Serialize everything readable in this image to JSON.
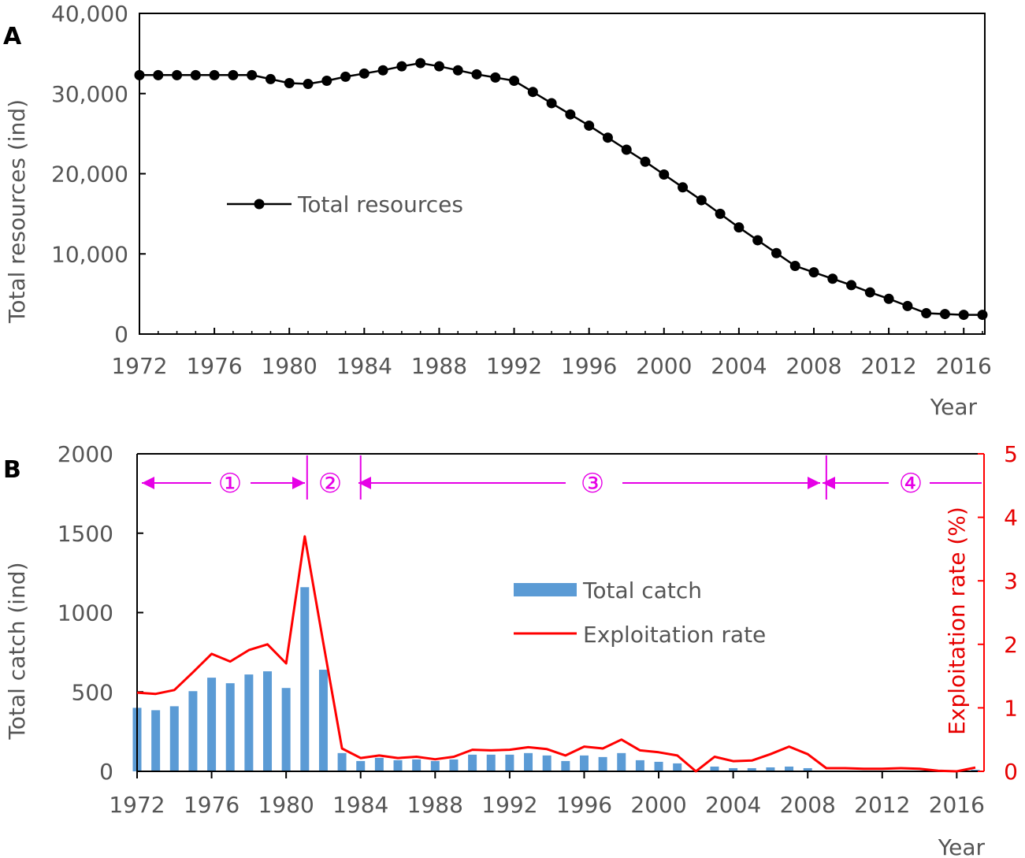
{
  "panel_a_label": "A",
  "panel_b_label": "B",
  "chart_data": [
    {
      "type": "line",
      "panel": "A",
      "title": "",
      "xlabel": "Year",
      "ylabel": "Total resources (ind)",
      "xlim": [
        1972,
        2017
      ],
      "ylim": [
        0,
        40000
      ],
      "x_ticks": [
        "1972",
        "1976",
        "1980",
        "1984",
        "1988",
        "1992",
        "1996",
        "2000",
        "2004",
        "2008",
        "2012",
        "2016"
      ],
      "y_ticks": [
        "0",
        "10,000",
        "20,000",
        "30,000",
        "40,000"
      ],
      "legend_position": "center-left",
      "grid": false,
      "series": [
        {
          "name": "Total resources",
          "color": "#000000",
          "x": [
            1972,
            1973,
            1974,
            1975,
            1976,
            1977,
            1978,
            1979,
            1980,
            1981,
            1982,
            1983,
            1984,
            1985,
            1986,
            1987,
            1988,
            1989,
            1990,
            1991,
            1992,
            1993,
            1994,
            1995,
            1996,
            1997,
            1998,
            1999,
            2000,
            2001,
            2002,
            2003,
            2004,
            2005,
            2006,
            2007,
            2008,
            2009,
            2010,
            2011,
            2012,
            2013,
            2014,
            2015,
            2016,
            2017
          ],
          "values": [
            32300,
            32300,
            32300,
            32300,
            32300,
            32300,
            32300,
            31800,
            31300,
            31200,
            31600,
            32100,
            32500,
            32900,
            33400,
            33800,
            33400,
            32900,
            32400,
            32000,
            31600,
            30200,
            28800,
            27400,
            26000,
            24500,
            23000,
            21500,
            19900,
            18300,
            16700,
            15000,
            13300,
            11700,
            10100,
            8500,
            7700,
            6900,
            6100,
            5200,
            4400,
            3500,
            2600,
            2500,
            2400,
            2400
          ]
        }
      ]
    },
    {
      "type": "bar",
      "panel": "B",
      "title": "",
      "xlabel": "Year",
      "ylabel": "Total catch (ind)",
      "y2label": "Exploitation rate (%)",
      "xlim": [
        1972,
        2017
      ],
      "ylim": [
        0,
        2000
      ],
      "y2lim": [
        0,
        5
      ],
      "x_ticks": [
        "1972",
        "1976",
        "1980",
        "1984",
        "1988",
        "1992",
        "1996",
        "2000",
        "2004",
        "2008",
        "2012",
        "2016"
      ],
      "y_ticks": [
        "0",
        "500",
        "1000",
        "1500",
        "2000"
      ],
      "y2_ticks": [
        "0",
        "1",
        "2",
        "3",
        "4",
        "5"
      ],
      "legend_position": "center",
      "grid": false,
      "periods": [
        {
          "label": "①",
          "start": 1972,
          "end": 1981
        },
        {
          "label": "②",
          "start": 1981,
          "end": 1984
        },
        {
          "label": "③",
          "start": 1984,
          "end": 2009
        },
        {
          "label": "④",
          "start": 2009,
          "end": 2017
        }
      ],
      "series": [
        {
          "name": "Total catch",
          "kind": "bar",
          "color": "#5b9bd5",
          "x": [
            1972,
            1973,
            1974,
            1975,
            1976,
            1977,
            1978,
            1979,
            1980,
            1981,
            1982,
            1983,
            1984,
            1985,
            1986,
            1987,
            1988,
            1989,
            1990,
            1991,
            1992,
            1993,
            1994,
            1995,
            1996,
            1997,
            1998,
            1999,
            2000,
            2001,
            2002,
            2003,
            2004,
            2005,
            2006,
            2007,
            2008,
            2009,
            2010,
            2011,
            2012,
            2013,
            2014,
            2015,
            2016,
            2017
          ],
          "values": [
            400,
            385,
            410,
            505,
            590,
            555,
            610,
            630,
            525,
            1160,
            640,
            115,
            65,
            85,
            70,
            75,
            65,
            75,
            105,
            105,
            105,
            115,
            100,
            65,
            100,
            90,
            115,
            70,
            60,
            50,
            0,
            30,
            20,
            20,
            25,
            30,
            20,
            5,
            5,
            5,
            5,
            5,
            5,
            0,
            0,
            10
          ]
        },
        {
          "name": "Exploitation  rate",
          "kind": "line",
          "axis": "right",
          "color": "#ff0000",
          "x": [
            1972,
            1973,
            1974,
            1975,
            1976,
            1977,
            1978,
            1979,
            1980,
            1981,
            1982,
            1983,
            1984,
            1985,
            1986,
            1987,
            1988,
            1989,
            1990,
            1991,
            1992,
            1993,
            1994,
            1995,
            1996,
            1997,
            1998,
            1999,
            2000,
            2001,
            2002,
            2003,
            2004,
            2005,
            2006,
            2007,
            2008,
            2009,
            2010,
            2011,
            2012,
            2013,
            2014,
            2015,
            2016,
            2017
          ],
          "values": [
            1.24,
            1.22,
            1.28,
            1.56,
            1.85,
            1.73,
            1.91,
            2.0,
            1.7,
            3.7,
            2.02,
            0.36,
            0.21,
            0.25,
            0.21,
            0.23,
            0.19,
            0.23,
            0.34,
            0.33,
            0.34,
            0.38,
            0.35,
            0.25,
            0.39,
            0.36,
            0.5,
            0.33,
            0.3,
            0.25,
            0.0,
            0.23,
            0.16,
            0.17,
            0.27,
            0.39,
            0.27,
            0.05,
            0.05,
            0.04,
            0.04,
            0.05,
            0.04,
            0.01,
            0.0,
            0.06
          ]
        }
      ]
    }
  ]
}
